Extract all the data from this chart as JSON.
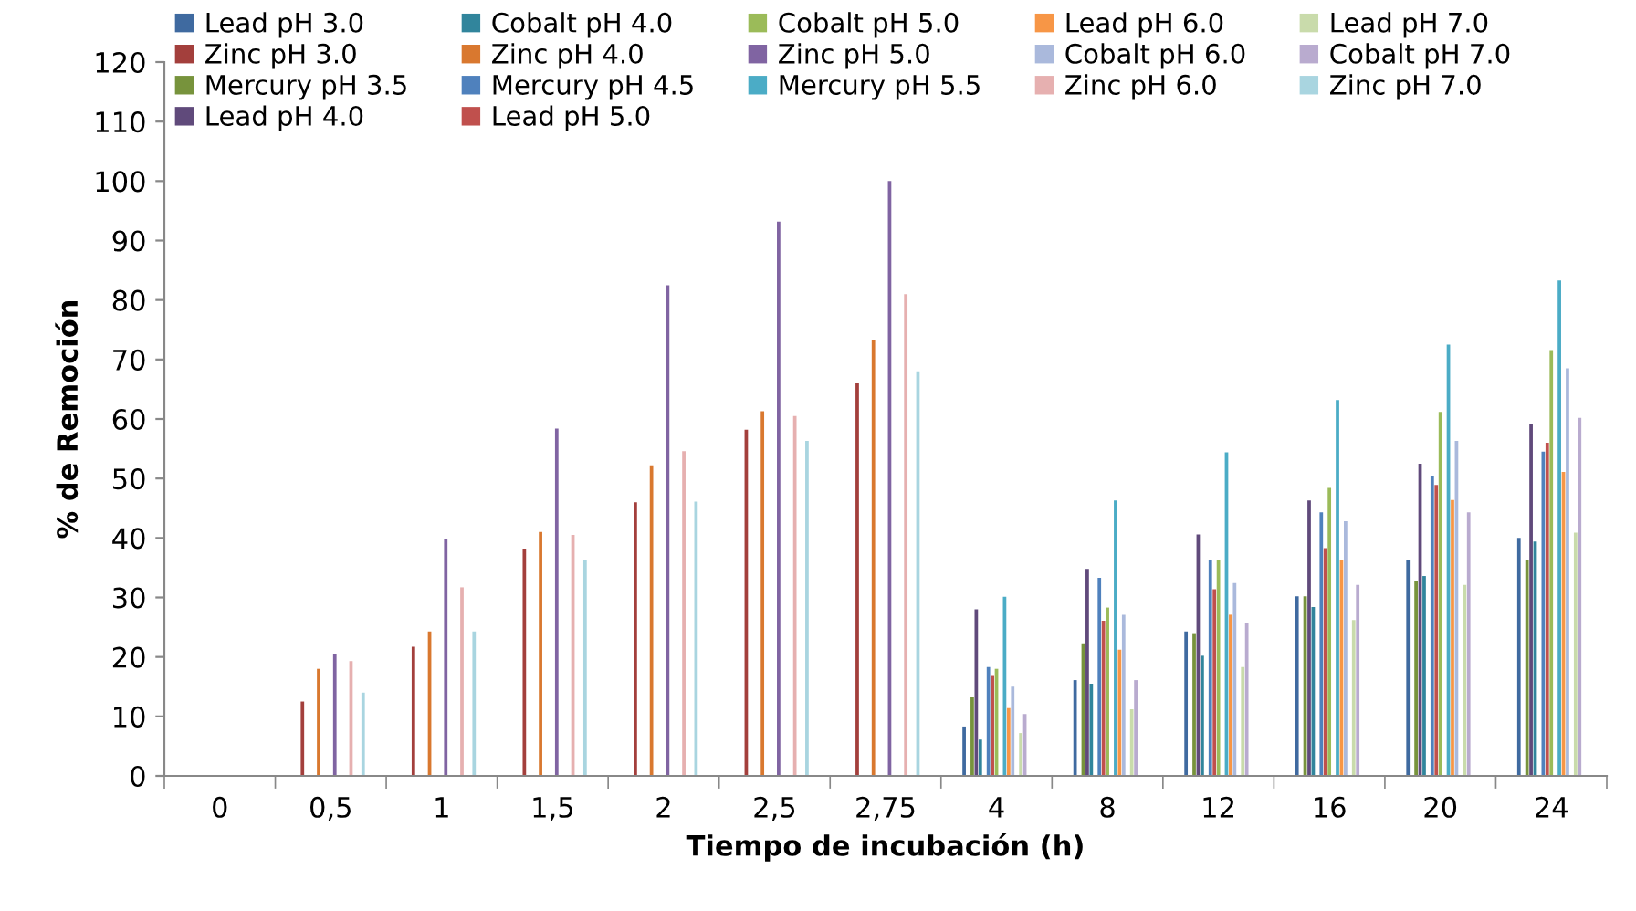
{
  "chart_data": {
    "type": "bar",
    "xlabel": "Tiempo de incubación (h)",
    "ylabel": "% de Remoción",
    "categories": [
      "0",
      "0,5",
      "1",
      "1,5",
      "2",
      "2,5",
      "2,75",
      "4",
      "8",
      "12",
      "16",
      "20",
      "24"
    ],
    "ylim": [
      0,
      120
    ],
    "yticks": [
      0,
      10,
      20,
      30,
      40,
      50,
      60,
      70,
      80,
      90,
      100,
      110,
      120
    ],
    "grid": false,
    "legend": "top",
    "series": [
      {
        "name": "Lead pH 3.0",
        "color": "#3f6aa0",
        "values": [
          null,
          null,
          null,
          null,
          null,
          null,
          null,
          8.3,
          16.1,
          24.3,
          30.2,
          36.3,
          40
        ]
      },
      {
        "name": "Zinc pH 3.0",
        "color": "#a33f3c",
        "values": [
          null,
          12.5,
          21.7,
          38.2,
          46,
          58.2,
          66,
          null,
          null,
          null,
          null,
          null,
          null
        ]
      },
      {
        "name": "Mercury pH 3.5",
        "color": "#77933c",
        "values": [
          null,
          null,
          null,
          null,
          null,
          null,
          null,
          13.2,
          22.3,
          24,
          30.2,
          32.7,
          36.3
        ]
      },
      {
        "name": "Lead pH 4.0",
        "color": "#604a7b",
        "values": [
          null,
          null,
          null,
          null,
          null,
          null,
          null,
          28,
          34.8,
          40.6,
          46.3,
          52.5,
          59.2
        ]
      },
      {
        "name": "Cobalt pH 4.0",
        "color": "#31859c",
        "values": [
          null,
          null,
          null,
          null,
          null,
          null,
          null,
          6.1,
          15.5,
          20.2,
          28.4,
          33.6,
          39.4
        ]
      },
      {
        "name": "Zinc pH 4.0",
        "color": "#d9782f",
        "values": [
          null,
          18,
          24.3,
          41,
          52.2,
          61.3,
          73.2,
          null,
          null,
          null,
          null,
          null,
          null
        ]
      },
      {
        "name": "Mercury pH 4.5",
        "color": "#4f81bd",
        "values": [
          null,
          null,
          null,
          null,
          null,
          null,
          null,
          18.3,
          33.3,
          36.3,
          44.3,
          50.4,
          54.5
        ]
      },
      {
        "name": "Lead pH 5.0",
        "color": "#c0504d",
        "values": [
          null,
          null,
          null,
          null,
          null,
          null,
          null,
          16.8,
          26.1,
          31.4,
          38.3,
          48.9,
          56
        ]
      },
      {
        "name": "Cobalt pH 5.0",
        "color": "#9bbb59",
        "values": [
          null,
          null,
          null,
          null,
          null,
          null,
          null,
          18,
          28.3,
          36.3,
          48.4,
          61.2,
          71.6
        ]
      },
      {
        "name": "Zinc pH 5.0",
        "color": "#8064a2",
        "values": [
          null,
          20.5,
          39.8,
          58.4,
          82.5,
          93.2,
          100,
          null,
          null,
          null,
          null,
          null,
          null
        ]
      },
      {
        "name": "Mercury pH 5.5",
        "color": "#4bacc6",
        "values": [
          null,
          null,
          null,
          null,
          null,
          null,
          null,
          30.1,
          46.3,
          54.4,
          63.2,
          72.5,
          83.3
        ]
      },
      {
        "name": "Lead pH 6.0",
        "color": "#f79646",
        "values": [
          null,
          null,
          null,
          null,
          null,
          null,
          null,
          11.4,
          21.2,
          27.1,
          36.3,
          46.4,
          51.1
        ]
      },
      {
        "name": "Cobalt pH 6.0",
        "color": "#aab9dc",
        "values": [
          null,
          null,
          null,
          null,
          null,
          null,
          null,
          15,
          27.1,
          32.4,
          42.8,
          56.3,
          68.5
        ]
      },
      {
        "name": "Zinc pH 6.0",
        "color": "#e6b0b0",
        "values": [
          null,
          19.3,
          31.7,
          40.5,
          54.6,
          60.5,
          81,
          null,
          null,
          null,
          null,
          null,
          null
        ]
      },
      {
        "name": "Lead pH 7.0",
        "color": "#c9dbab",
        "values": [
          null,
          null,
          null,
          null,
          null,
          null,
          null,
          7.2,
          11.2,
          18.3,
          26.2,
          32.1,
          40.9
        ]
      },
      {
        "name": "Cobalt pH 7.0",
        "color": "#b9abcf",
        "values": [
          null,
          null,
          null,
          null,
          null,
          null,
          null,
          10.4,
          16.1,
          25.7,
          32.1,
          44.3,
          60.2
        ]
      },
      {
        "name": "Zinc pH 7.0",
        "color": "#a9d5e0",
        "values": [
          null,
          14,
          24.3,
          36.3,
          46.1,
          56.3,
          68,
          null,
          null,
          null,
          null,
          null,
          null
        ]
      }
    ]
  }
}
